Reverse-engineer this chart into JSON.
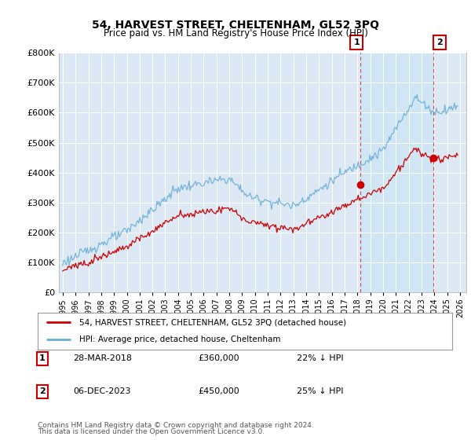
{
  "title": "54, HARVEST STREET, CHELTENHAM, GL52 3PQ",
  "subtitle": "Price paid vs. HM Land Registry's House Price Index (HPI)",
  "hpi_color": "#6baed6",
  "price_color": "#cc0000",
  "shade_color": "#cce0f0",
  "hatch_color": "#bbbbbb",
  "ylim": [
    0,
    800000
  ],
  "yticks": [
    0,
    100000,
    200000,
    300000,
    400000,
    500000,
    600000,
    700000,
    800000
  ],
  "xmin": 1995.0,
  "xmax": 2026.5,
  "transaction1_x": 2018.23,
  "transaction1_y": 360000,
  "transaction2_x": 2023.92,
  "transaction2_y": 450000,
  "legend_label_price": "54, HARVEST STREET, CHELTENHAM, GL52 3PQ (detached house)",
  "legend_label_hpi": "HPI: Average price, detached house, Cheltenham",
  "footer1": "Contains HM Land Registry data © Crown copyright and database right 2024.",
  "footer2": "This data is licensed under the Open Government Licence v3.0.",
  "table_row1": [
    "1",
    "28-MAR-2018",
    "£360,000",
    "22% ↓ HPI"
  ],
  "table_row2": [
    "2",
    "06-DEC-2023",
    "£450,000",
    "25% ↓ HPI"
  ],
  "box_color": "#cc0000"
}
